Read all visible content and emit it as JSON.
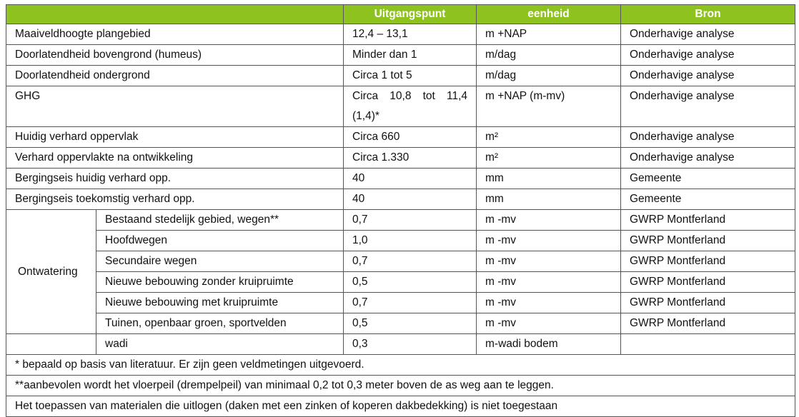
{
  "headers": [
    "",
    "Uitgangspunt",
    "eenheid",
    "Bron"
  ],
  "rows": [
    {
      "label": "Maaiveldhoogte plangebied",
      "value": "12,4 – 13,1",
      "unit": "m +NAP",
      "source": "Onderhavige analyse"
    },
    {
      "label": "Doorlatendheid bovengrond (humeus)",
      "value": "Minder dan 1",
      "unit": "m/dag",
      "source": "Onderhavige analyse"
    },
    {
      "label": "Doorlatendheid ondergrond",
      "value": "Circa 1 tot 5",
      "unit": "m/dag",
      "source": "Onderhavige analyse"
    },
    {
      "label": "GHG",
      "value": "Circa 10,8 tot 11,4 (1,4)*",
      "unit": "m +NAP (m-mv)",
      "source": "Onderhavige analyse"
    },
    {
      "label": "Huidig verhard oppervlak",
      "value": "Circa 660",
      "unit": "m²",
      "source": "Onderhavige analyse"
    },
    {
      "label": "Verhard oppervlakte na ontwikkeling",
      "value": "Circa 1.330",
      "unit": "m²",
      "source": "Onderhavige analyse"
    },
    {
      "label": "Bergingseis huidig verhard opp.",
      "value": "40",
      "unit": "mm",
      "source": "Gemeente"
    },
    {
      "label": "Bergingseis toekomstig verhard opp.",
      "value": "40",
      "unit": "mm",
      "source": "Gemeente"
    }
  ],
  "ontwatering": {
    "label": "Ontwatering",
    "rows": [
      {
        "label": "Bestaand stedelijk gebied, wegen**",
        "value": "0,7",
        "unit": "m -mv",
        "source": "GWRP Montferland"
      },
      {
        "label": "Hoofdwegen",
        "value": "1,0",
        "unit": "m -mv",
        "source": "GWRP Montferland"
      },
      {
        "label": "Secundaire wegen",
        "value": "0,7",
        "unit": "m -mv",
        "source": "GWRP Montferland"
      },
      {
        "label": "Nieuwe bebouwing zonder kruipruimte",
        "value": "0,5",
        "unit": "m -mv",
        "source": "GWRP Montferland"
      },
      {
        "label": "Nieuwe bebouwing met kruipruimte",
        "value": "0,7",
        "unit": "m -mv",
        "source": "GWRP Montferland"
      },
      {
        "label": "Tuinen, openbaar groen, sportvelden",
        "value": "0,5",
        "unit": "m -mv",
        "source": "GWRP Montferland"
      }
    ]
  },
  "wadi": {
    "label": "wadi",
    "value": "0,3",
    "unit": "m-wadi bodem",
    "source": ""
  },
  "notes": [
    "*   bepaald op basis van literatuur. Er zijn geen veldmetingen uitgevoerd.",
    "**aanbevolen wordt het vloerpeil (drempelpeil) van minimaal 0,2 tot 0,3 meter boven de as weg aan te leggen.",
    "Het toepassen van materialen die uitlogen (daken met een zinken of koperen dakbedekking) is niet toegestaan"
  ]
}
